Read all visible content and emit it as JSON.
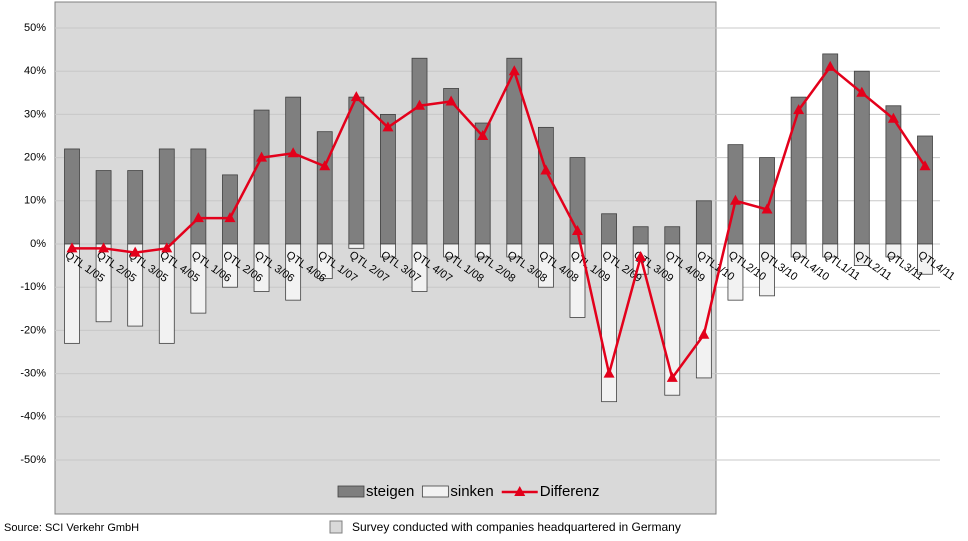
{
  "chart_data": {
    "type": "bar-line",
    "categories": [
      "QTL 1/05",
      "QTL 2/05",
      "QTL 3/05",
      "QTL 4/05",
      "QTL 1/06",
      "QTL 2/06",
      "QTL 3/06",
      "QTL 4/06",
      "QTL 1/07",
      "QTL 2/07",
      "QTL 3/07",
      "QTL 4/07",
      "QTL 1/08",
      "QTL 2/08",
      "QTL 3/08",
      "QTL 4/08",
      "QTL 1/09",
      "QTL 2/09",
      "QTL 3/09",
      "QTL 4/09",
      "QTL1/10",
      "QTL2/10",
      "QTL3/10",
      "QTL4/10",
      "QTL1/11",
      "QTL2/11",
      "QTL3/11",
      "QTL4/11"
    ],
    "series": [
      {
        "name": "steigen",
        "color": "#7f7f7f",
        "kind": "bar",
        "values": [
          22,
          17,
          17,
          22,
          22,
          16,
          31,
          34,
          26,
          34,
          30,
          43,
          36,
          28,
          43,
          27,
          20,
          7,
          4,
          4,
          10,
          23,
          20,
          34,
          44,
          40,
          32,
          25
        ]
      },
      {
        "name": "sinken",
        "color": "#f2f2f2",
        "kind": "bar",
        "values": [
          -23,
          -18,
          -19,
          -23,
          -16,
          -10,
          -11,
          -13,
          -8,
          -1,
          -3,
          -11,
          -3,
          -3,
          -3,
          -10,
          -17,
          -36.5,
          -7,
          -35,
          -31,
          -13,
          -12,
          -3,
          -3,
          -5,
          -3,
          -7
        ]
      },
      {
        "name": "Differenz",
        "color": "#e3001b",
        "kind": "line",
        "values": [
          -1,
          -1,
          -2,
          -1,
          6,
          6,
          20,
          21,
          18,
          34,
          27,
          32,
          33,
          25,
          40,
          17,
          3,
          -30,
          -3,
          -31,
          -21,
          10,
          8,
          31,
          41,
          35,
          29,
          18
        ]
      }
    ],
    "ylim": [
      -60,
      55
    ],
    "yticks": [
      {
        "value": 50,
        "label": "50%"
      },
      {
        "value": 40,
        "label": "40%"
      },
      {
        "value": 30,
        "label": "30%"
      },
      {
        "value": 20,
        "label": "20%"
      },
      {
        "value": 10,
        "label": "10%"
      },
      {
        "value": 0,
        "label": "0%"
      },
      {
        "value": -10,
        "label": "-10%"
      },
      {
        "value": -20,
        "label": "-20%"
      },
      {
        "value": -30,
        "label": "-30%"
      },
      {
        "value": -40,
        "label": "-40%"
      },
      {
        "value": -50,
        "label": "-50%"
      }
    ],
    "grid": true,
    "source": "Source: SCI Verkehr GmbH",
    "shade_note": "Survey conducted with companies headquartered in Germany"
  }
}
